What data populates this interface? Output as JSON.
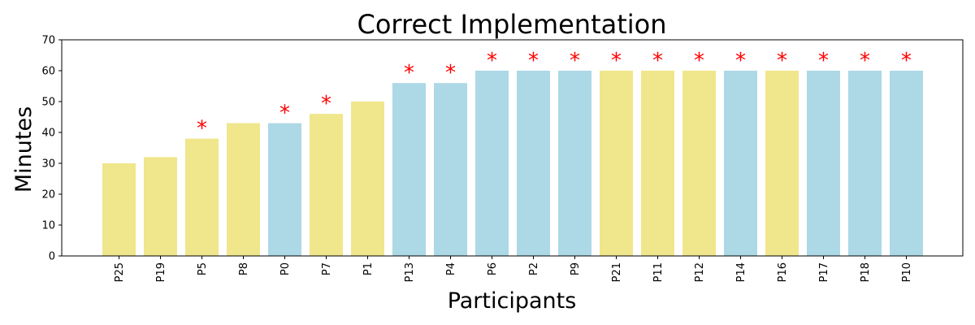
{
  "chart_data": {
    "type": "bar",
    "title": "Correct Implementation",
    "xlabel": "Participants",
    "ylabel": "Minutes",
    "ylim": [
      0,
      70
    ],
    "yticks": [
      0,
      10,
      20,
      30,
      40,
      50,
      60,
      70
    ],
    "grid": false,
    "legend": "none",
    "marker_symbol": "*",
    "colors": {
      "yellow": "#f0e68c",
      "blue": "#add8e6",
      "marker": "#ff0000",
      "axis": "#000000"
    },
    "categories": [
      "P25",
      "P19",
      "P5",
      "P8",
      "P0",
      "P7",
      "P1",
      "P13",
      "P4",
      "P6",
      "P2",
      "P9",
      "P21",
      "P11",
      "P12",
      "P14",
      "P16",
      "P17",
      "P18",
      "P10"
    ],
    "values": [
      30,
      32,
      38,
      43,
      43,
      46,
      50,
      56,
      56,
      60,
      60,
      60,
      60,
      60,
      60,
      60,
      60,
      60,
      60,
      60
    ],
    "bar_colors": [
      "yellow",
      "yellow",
      "yellow",
      "yellow",
      "blue",
      "yellow",
      "yellow",
      "blue",
      "blue",
      "blue",
      "blue",
      "blue",
      "yellow",
      "yellow",
      "yellow",
      "blue",
      "yellow",
      "blue",
      "blue",
      "blue"
    ],
    "marked": [
      false,
      false,
      true,
      false,
      true,
      true,
      false,
      true,
      true,
      true,
      true,
      true,
      true,
      true,
      true,
      true,
      true,
      true,
      true,
      true
    ]
  }
}
